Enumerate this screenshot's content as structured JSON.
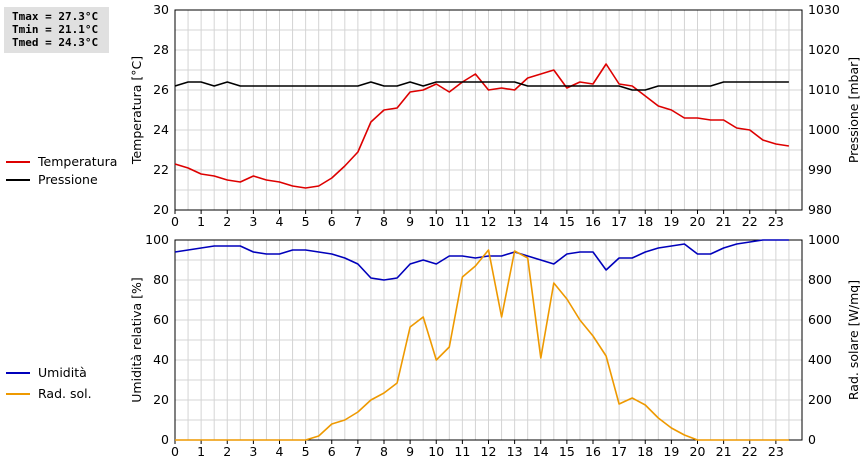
{
  "stats": {
    "tmax": "Tmax = 27.3°C",
    "tmin": "Tmin = 21.1°C",
    "tmed": "Tmed = 24.3°C"
  },
  "chart_data": [
    {
      "type": "line",
      "ylabel": "Temperatura [°C]",
      "y2label": "Pressione [mbar]",
      "ylim": [
        20,
        30
      ],
      "y2lim": [
        980,
        1030
      ],
      "xlim": [
        0,
        24
      ],
      "xticks": [
        "0",
        "1",
        "2",
        "3",
        "4",
        "5",
        "6",
        "7",
        "8",
        "9",
        "10",
        "11",
        "12",
        "13",
        "14",
        "15",
        "16",
        "17",
        "18",
        "19",
        "20",
        "21",
        "22",
        "23"
      ],
      "yticks": [
        "20",
        "22",
        "24",
        "26",
        "28",
        "30"
      ],
      "y2ticks": [
        "980",
        "990",
        "1000",
        "1010",
        "1020",
        "1030"
      ],
      "grid": true,
      "legend": "left",
      "series": [
        {
          "name": "Temperatura",
          "axis": "left",
          "color": "#dd0000",
          "x": [
            0,
            0.5,
            1,
            1.5,
            2,
            2.5,
            3,
            3.5,
            4,
            4.5,
            5,
            5.5,
            6,
            6.5,
            7,
            7.5,
            8,
            8.5,
            9,
            9.5,
            10,
            10.5,
            11,
            11.5,
            12,
            12.5,
            13,
            13.5,
            14,
            14.5,
            15,
            15.5,
            16,
            16.5,
            17,
            17.5,
            18,
            18.5,
            19,
            19.5,
            20,
            20.5,
            21,
            21.5,
            22,
            22.5,
            23,
            23.5
          ],
          "y": [
            22.3,
            22.1,
            21.8,
            21.7,
            21.5,
            21.4,
            21.7,
            21.5,
            21.4,
            21.2,
            21.1,
            21.2,
            21.6,
            22.2,
            22.9,
            24.4,
            25.0,
            25.1,
            25.9,
            26.0,
            26.3,
            25.9,
            26.4,
            26.8,
            26.0,
            26.1,
            26.0,
            26.6,
            26.8,
            27.0,
            26.1,
            26.4,
            26.3,
            27.3,
            26.3,
            26.2,
            25.7,
            25.2,
            25.0,
            24.6,
            24.6,
            24.5,
            24.5,
            24.1,
            24.0,
            23.5,
            23.3,
            23.2
          ]
        },
        {
          "name": "Pressione",
          "axis": "right",
          "color": "#000000",
          "x": [
            0,
            0.5,
            1,
            1.5,
            2,
            2.5,
            3,
            3.5,
            4,
            4.5,
            5,
            5.5,
            6,
            6.5,
            7,
            7.5,
            8,
            8.5,
            9,
            9.5,
            10,
            10.5,
            11,
            11.5,
            12,
            12.5,
            13,
            13.5,
            14,
            14.5,
            15,
            15.5,
            16,
            16.5,
            17,
            17.5,
            18,
            18.5,
            19,
            19.5,
            20,
            20.5,
            21,
            21.5,
            22,
            22.5,
            23,
            23.5
          ],
          "y": [
            1011,
            1012,
            1012,
            1011,
            1012,
            1011,
            1011,
            1011,
            1011,
            1011,
            1011,
            1011,
            1011,
            1011,
            1011,
            1012,
            1011,
            1011,
            1012,
            1011,
            1012,
            1012,
            1012,
            1012,
            1012,
            1012,
            1012,
            1011,
            1011,
            1011,
            1011,
            1011,
            1011,
            1011,
            1011,
            1010,
            1010,
            1011,
            1011,
            1011,
            1011,
            1011,
            1012,
            1012,
            1012,
            1012,
            1012,
            1012
          ]
        }
      ]
    },
    {
      "type": "line",
      "ylabel": "Umidità relativa [%]",
      "y2label": "Rad. solare [W/mq]",
      "ylim": [
        0,
        100
      ],
      "y2lim": [
        0,
        1000
      ],
      "xlim": [
        0,
        24
      ],
      "xticks": [
        "0",
        "1",
        "2",
        "3",
        "4",
        "5",
        "6",
        "7",
        "8",
        "9",
        "10",
        "11",
        "12",
        "13",
        "14",
        "15",
        "16",
        "17",
        "18",
        "19",
        "20",
        "21",
        "22",
        "23"
      ],
      "yticks": [
        "0",
        "20",
        "40",
        "60",
        "80",
        "100"
      ],
      "y2ticks": [
        "0",
        "200",
        "400",
        "600",
        "800",
        "1000"
      ],
      "grid": true,
      "legend": "left",
      "series": [
        {
          "name": "Umidità",
          "axis": "left",
          "color": "#0000bb",
          "x": [
            0,
            0.5,
            1,
            1.5,
            2,
            2.5,
            3,
            3.5,
            4,
            4.5,
            5,
            5.5,
            6,
            6.5,
            7,
            7.5,
            8,
            8.5,
            9,
            9.5,
            10,
            10.5,
            11,
            11.5,
            12,
            12.5,
            13,
            13.5,
            14,
            14.5,
            15,
            15.5,
            16,
            16.5,
            17,
            17.5,
            18,
            18.5,
            19,
            19.5,
            20,
            20.5,
            21,
            21.5,
            22,
            22.5,
            23,
            23.5
          ],
          "y": [
            94,
            95,
            96,
            97,
            97,
            97,
            94,
            93,
            93,
            95,
            95,
            94,
            93,
            91,
            88,
            81,
            80,
            81,
            88,
            90,
            88,
            92,
            92,
            91,
            92,
            92,
            94,
            92,
            90,
            88,
            93,
            94,
            94,
            85,
            91,
            91,
            94,
            96,
            97,
            98,
            93,
            93,
            96,
            98,
            99,
            100,
            100,
            100
          ]
        },
        {
          "name": "Rad. sol.",
          "axis": "right",
          "color": "#ee9900",
          "x": [
            0,
            0.5,
            1,
            1.5,
            2,
            2.5,
            3,
            3.5,
            4,
            4.5,
            5,
            5.5,
            6,
            6.5,
            7,
            7.5,
            8,
            8.5,
            9,
            9.5,
            10,
            10.5,
            11,
            11.5,
            12,
            12.5,
            13,
            13.5,
            14,
            14.5,
            15,
            15.5,
            16,
            16.5,
            17,
            17.5,
            18,
            18.5,
            19,
            19.5,
            20,
            20.5,
            21,
            21.5,
            22,
            22.5,
            23,
            23.5
          ],
          "y": [
            0,
            0,
            0,
            0,
            0,
            0,
            0,
            0,
            0,
            0,
            0,
            20,
            80,
            100,
            140,
            200,
            235,
            285,
            565,
            615,
            400,
            465,
            815,
            870,
            950,
            615,
            945,
            910,
            410,
            785,
            705,
            600,
            520,
            420,
            180,
            210,
            175,
            110,
            60,
            25,
            0,
            0,
            0,
            0,
            0,
            0,
            0,
            0
          ]
        }
      ]
    }
  ]
}
